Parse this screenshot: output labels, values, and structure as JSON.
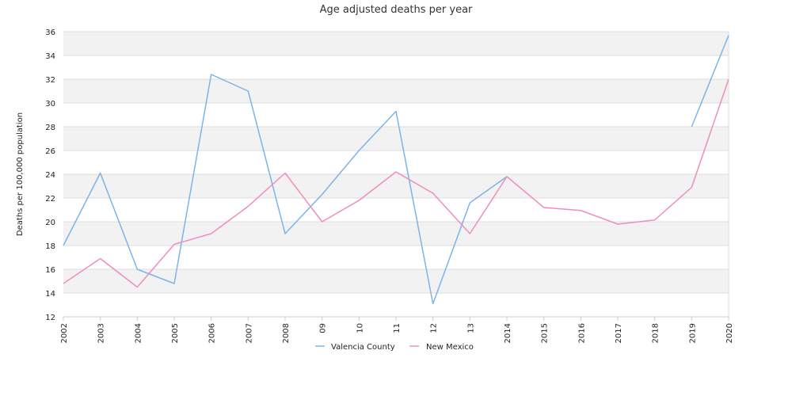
{
  "chart_data": {
    "type": "line",
    "title": "Age adjusted deaths per year",
    "xlabel": "",
    "ylabel": "Deaths per 100,000 population",
    "categories": [
      "2002",
      "2003",
      "2004",
      "2005",
      "2006",
      "2007",
      "2008",
      "09",
      "10",
      "11",
      "12",
      "13",
      "2014",
      "2015",
      "2016",
      "2017",
      "2018",
      "2019",
      "2020"
    ],
    "ylim": [
      12,
      36
    ],
    "yticks": [
      12,
      14,
      16,
      18,
      20,
      22,
      24,
      26,
      28,
      30,
      32,
      34,
      36
    ],
    "grid": true,
    "banded_background": true,
    "legend_position": "bottom-center",
    "series": [
      {
        "name": "Valencia County",
        "color": "#7ab4ea",
        "values": [
          18.0,
          24.1,
          16.0,
          14.8,
          32.4,
          31.0,
          19.0,
          22.3,
          26.0,
          29.3,
          13.1,
          21.6,
          23.8,
          null,
          null,
          null,
          null,
          28.0,
          35.7
        ]
      },
      {
        "name": "New Mexico",
        "color": "#f08cc0",
        "values": [
          14.8,
          16.9,
          14.5,
          18.1,
          19.0,
          21.3,
          24.1,
          20.0,
          21.8,
          24.2,
          22.4,
          19.0,
          23.8,
          21.2,
          20.95,
          19.8,
          20.15,
          22.9,
          32.0
        ]
      }
    ]
  }
}
